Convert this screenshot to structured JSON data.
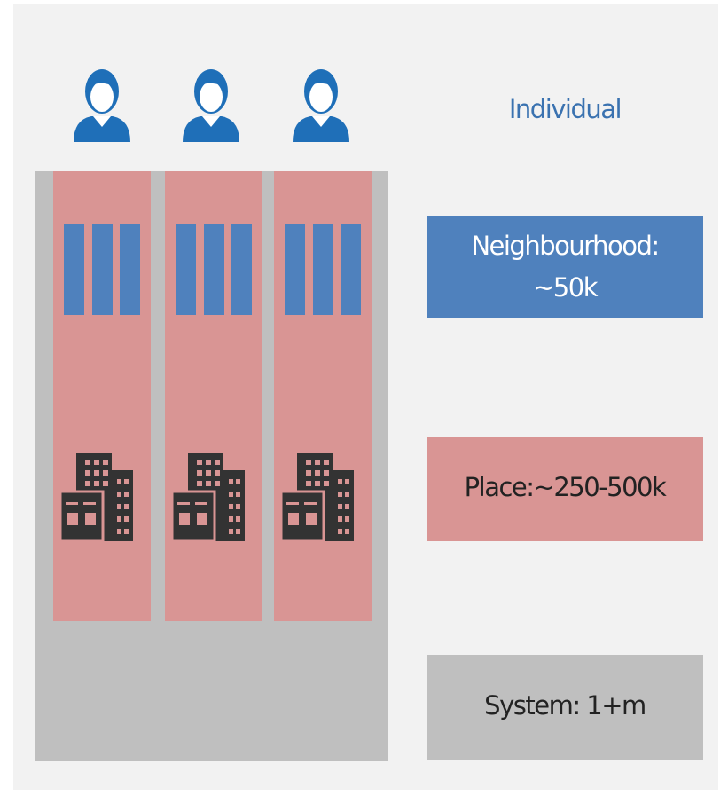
{
  "labels": {
    "individual": "Individual",
    "neighbourhood": [
      "Neighbourhood:",
      "~50k"
    ],
    "place": "Place:~250-500k",
    "system": "System: 1+m"
  }
}
